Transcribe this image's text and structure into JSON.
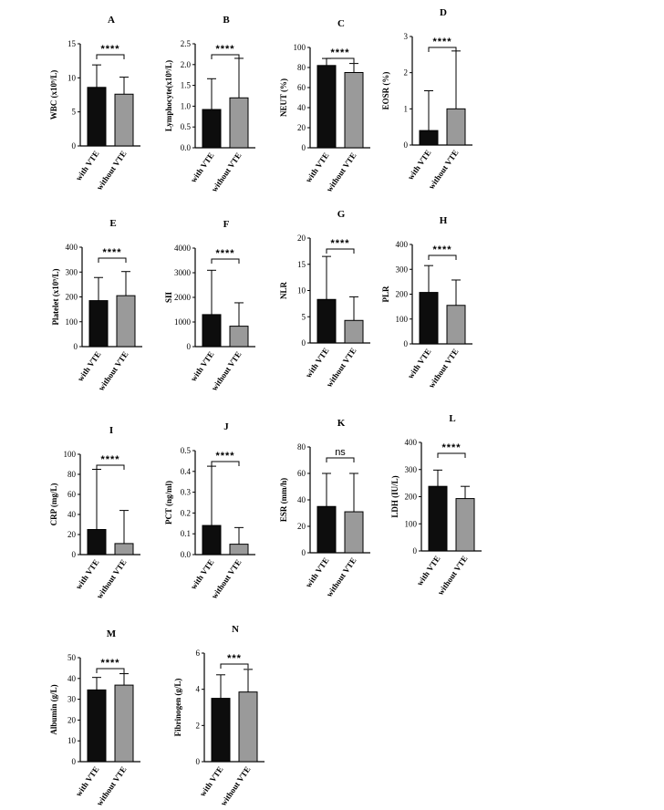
{
  "colors": {
    "with_vte": "#0d0d0d",
    "without_vte": "#9a9a9a",
    "axis": "#000000"
  },
  "chart_data": [
    {
      "panel": "A",
      "type": "bar",
      "ylabel": "WBC (x10⁹/L)",
      "ylim": [
        0,
        15
      ],
      "yticks": [
        0,
        5,
        10,
        15
      ],
      "tick_labels": [
        "0",
        "5",
        "10",
        "15"
      ],
      "categories": [
        "with VTE",
        "without VTE"
      ],
      "values": [
        8.6,
        7.6
      ],
      "errors": [
        3.3,
        2.5
      ],
      "significance": "****"
    },
    {
      "panel": "B",
      "type": "bar",
      "ylabel": "Lymphocyte(x10⁹/L)",
      "ylim": [
        0,
        2.5
      ],
      "yticks": [
        0,
        0.5,
        1,
        1.5,
        2,
        2.5
      ],
      "tick_labels": [
        "0.0",
        "0.5",
        "1.0",
        "1.5",
        "2.0",
        "2.5"
      ],
      "categories": [
        "with VTE",
        "without VTE"
      ],
      "values": [
        0.92,
        1.2
      ],
      "errors": [
        0.74,
        0.95
      ],
      "significance": "****"
    },
    {
      "panel": "C",
      "type": "bar",
      "ylabel": "NEUT (%)",
      "ylim": [
        0,
        100
      ],
      "yticks": [
        0,
        20,
        40,
        60,
        80,
        100
      ],
      "tick_labels": [
        "0",
        "20",
        "40",
        "60",
        "80",
        "100"
      ],
      "categories": [
        "with VTE",
        "without VTE"
      ],
      "values": [
        82,
        75
      ],
      "errors": [
        7,
        9
      ],
      "significance": "****"
    },
    {
      "panel": "D",
      "type": "bar",
      "ylabel": "EOSR (%)",
      "ylim": [
        0,
        3
      ],
      "yticks": [
        0,
        1,
        2,
        3
      ],
      "tick_labels": [
        "0",
        "1",
        "2",
        "3"
      ],
      "categories": [
        "with VTE",
        "without VTE"
      ],
      "values": [
        0.4,
        1.0
      ],
      "errors": [
        1.1,
        1.6
      ],
      "significance": "****"
    },
    {
      "panel": "E",
      "type": "bar",
      "ylabel": "Platelet (x10⁹/L)",
      "ylim": [
        0,
        400
      ],
      "yticks": [
        0,
        100,
        200,
        300,
        400
      ],
      "tick_labels": [
        "0",
        "100",
        "200",
        "300",
        "400"
      ],
      "categories": [
        "with VTE",
        "without VTE"
      ],
      "values": [
        185,
        205
      ],
      "errors": [
        93,
        97
      ],
      "significance": "****"
    },
    {
      "panel": "F",
      "type": "bar",
      "ylabel": "SII",
      "ylim": [
        0,
        4000
      ],
      "yticks": [
        0,
        1000,
        2000,
        3000,
        4000
      ],
      "tick_labels": [
        "0",
        "1000",
        "2000",
        "3000",
        "4000"
      ],
      "categories": [
        "with VTE",
        "without VTE"
      ],
      "values": [
        1300,
        830
      ],
      "errors": [
        1800,
        950
      ],
      "significance": "****"
    },
    {
      "panel": "G",
      "type": "bar",
      "ylabel": "NLR",
      "ylim": [
        0,
        20
      ],
      "yticks": [
        0,
        5,
        10,
        15,
        20
      ],
      "tick_labels": [
        "0",
        "5",
        "10",
        "15",
        "20"
      ],
      "categories": [
        "with VTE",
        "without VTE"
      ],
      "values": [
        8.3,
        4.3
      ],
      "errors": [
        8.2,
        4.5
      ],
      "significance": "****"
    },
    {
      "panel": "H",
      "type": "bar",
      "ylabel": "PLR",
      "ylim": [
        0,
        400
      ],
      "yticks": [
        0,
        100,
        200,
        300,
        400
      ],
      "tick_labels": [
        "0",
        "100",
        "200",
        "300",
        "400"
      ],
      "categories": [
        "with VTE",
        "without VTE"
      ],
      "values": [
        207,
        155
      ],
      "errors": [
        108,
        102
      ],
      "significance": "****"
    },
    {
      "panel": "I",
      "type": "bar",
      "ylabel": "CRP (mg/L)",
      "ylim": [
        0,
        100
      ],
      "yticks": [
        0,
        20,
        40,
        60,
        80,
        100
      ],
      "tick_labels": [
        "0",
        "20",
        "40",
        "60",
        "80",
        "100"
      ],
      "categories": [
        "with VTE",
        "without VTE"
      ],
      "values": [
        25,
        11
      ],
      "errors": [
        60,
        33
      ],
      "significance": "****"
    },
    {
      "panel": "J",
      "type": "bar",
      "ylabel": "PCT (ng/ml)",
      "ylim": [
        0,
        0.5
      ],
      "yticks": [
        0,
        0.1,
        0.2,
        0.3,
        0.4,
        0.5
      ],
      "tick_labels": [
        "0.0",
        "0.1",
        "0.2",
        "0.3",
        "0.4",
        "0.5"
      ],
      "categories": [
        "with VTE",
        "without VTE"
      ],
      "values": [
        0.14,
        0.05
      ],
      "errors": [
        0.285,
        0.08
      ],
      "significance": "****"
    },
    {
      "panel": "K",
      "type": "bar",
      "ylabel": "ESR (mm/h)",
      "ylim": [
        0,
        80
      ],
      "yticks": [
        0,
        20,
        40,
        60,
        80
      ],
      "tick_labels": [
        "0",
        "20",
        "40",
        "60",
        "80"
      ],
      "categories": [
        "with VTE",
        "without VTE"
      ],
      "values": [
        35,
        31
      ],
      "errors": [
        25,
        29
      ],
      "significance": "ns"
    },
    {
      "panel": "L",
      "type": "bar",
      "ylabel": "LDH (IU/L)",
      "ylim": [
        0,
        400
      ],
      "yticks": [
        0,
        100,
        200,
        300,
        400
      ],
      "tick_labels": [
        "0",
        "100",
        "200",
        "300",
        "400"
      ],
      "categories": [
        "with VTE",
        "without VTE"
      ],
      "values": [
        238,
        193
      ],
      "errors": [
        60,
        45
      ],
      "significance": "****"
    },
    {
      "panel": "M",
      "type": "bar",
      "ylabel": "Albumin (g/L)",
      "ylim": [
        0,
        50
      ],
      "yticks": [
        0,
        10,
        20,
        30,
        40,
        50
      ],
      "tick_labels": [
        "0",
        "10",
        "20",
        "30",
        "40",
        "50"
      ],
      "categories": [
        "with VTE",
        "without VTE"
      ],
      "values": [
        34.5,
        36.8
      ],
      "errors": [
        6,
        5.5
      ],
      "significance": "****"
    },
    {
      "panel": "N",
      "type": "bar",
      "ylabel": "Fibrinogen (g/L)",
      "ylim": [
        0,
        6
      ],
      "yticks": [
        0,
        2,
        4,
        6
      ],
      "tick_labels": [
        "0",
        "2",
        "4",
        "6"
      ],
      "categories": [
        "with VTE",
        "without VTE"
      ],
      "values": [
        3.5,
        3.85
      ],
      "errors": [
        1.3,
        1.25
      ],
      "significance": "***"
    }
  ]
}
